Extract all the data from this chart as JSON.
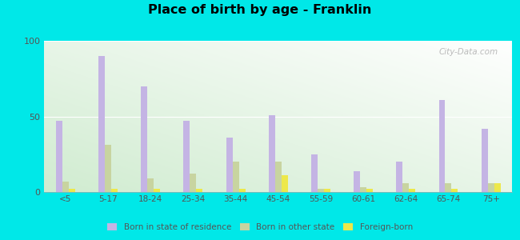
{
  "title": "Place of birth by age - Franklin",
  "categories": [
    "<5",
    "5-17",
    "18-24",
    "25-34",
    "35-44",
    "45-54",
    "55-59",
    "60-61",
    "62-64",
    "65-74",
    "75+"
  ],
  "born_in_state": [
    47,
    90,
    70,
    47,
    36,
    51,
    25,
    14,
    20,
    61,
    42
  ],
  "born_other_state": [
    7,
    31,
    9,
    12,
    20,
    20,
    2,
    3,
    6,
    6,
    6
  ],
  "foreign_born": [
    2,
    2,
    2,
    2,
    2,
    11,
    2,
    2,
    2,
    2,
    6
  ],
  "color_state": "#c4b4e4",
  "color_other": "#c8d4a0",
  "color_foreign": "#ede84a",
  "ylim": [
    0,
    100
  ],
  "yticks": [
    0,
    50,
    100
  ],
  "outer_background": "#00e8e8",
  "legend_labels": [
    "Born in state of residence",
    "Born in other state",
    "Foreign-born"
  ],
  "bar_width": 0.15,
  "watermark": "City-Data.com"
}
